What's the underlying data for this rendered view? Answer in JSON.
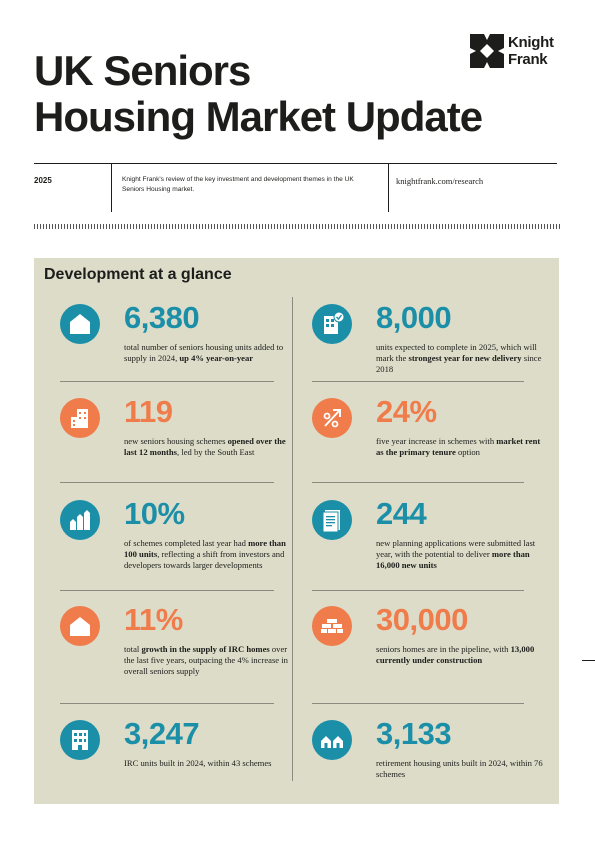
{
  "logo": {
    "line1": "Knight",
    "line2": "Frank"
  },
  "header": {
    "title_line1": "UK Seniors",
    "title_line2": "Housing Market Update",
    "year": "2025",
    "description": "Knight Frank's review of the key investment and development themes in the UK Seniors Housing market.",
    "url": "knightfrank.com/research"
  },
  "panel": {
    "title": "Development at a glance",
    "left": [
      {
        "icon": "house-icon",
        "color": "teal",
        "value": "6,380",
        "text_pre": "total number of seniors housing units added to supply in 2024, ",
        "text_bold": "up 4% year-on-year",
        "text_post": ""
      },
      {
        "icon": "buildings-icon",
        "color": "orange",
        "value": "119",
        "text_pre": "new seniors housing schemes ",
        "text_bold": "opened over the last 12 months",
        "text_post": ", led by the South East"
      },
      {
        "icon": "bar-houses-icon",
        "color": "teal",
        "value": "10%",
        "text_pre": "of schemes completed last year had ",
        "text_bold": "more than 100 units",
        "text_post": ", reflecting a shift from investors and developers towards larger developments"
      },
      {
        "icon": "home-outline-icon",
        "color": "orange",
        "value": "11%",
        "text_pre": "total ",
        "text_bold": "growth in the supply of IRC homes",
        "text_post": " over the last five years, outpacing the 4% increase in overall seniors supply"
      },
      {
        "icon": "apartment-block-icon",
        "color": "teal",
        "value": "3,247",
        "text_pre": "IRC units built in 2024, within 43 schemes",
        "text_bold": "",
        "text_post": ""
      }
    ],
    "right": [
      {
        "icon": "building-check-icon",
        "color": "teal",
        "value": "8,000",
        "text_pre": "units expected to complete in 2025, which will mark the ",
        "text_bold": "strongest year for new delivery",
        "text_post": " since 2018"
      },
      {
        "icon": "percent-arrow-icon",
        "color": "orange",
        "value": "24%",
        "text_pre": "five year increase in schemes with ",
        "text_bold": "market rent as the primary tenure",
        "text_post": " option"
      },
      {
        "icon": "document-icon",
        "color": "teal",
        "value": "244",
        "text_pre": "new planning applications were submitted last year, with the potential to deliver ",
        "text_bold": "more than 16,000 new units",
        "text_post": ""
      },
      {
        "icon": "bricks-icon",
        "color": "orange",
        "value": "30,000",
        "text_pre": "seniors homes are in the pipeline, with ",
        "text_bold": "13,000 currently under construction",
        "text_post": ""
      },
      {
        "icon": "two-houses-icon",
        "color": "teal",
        "value": "3,133",
        "text_pre": "retirement housing units built in 2024, within 76 schemes",
        "text_bold": "",
        "text_post": ""
      }
    ]
  },
  "colors": {
    "teal": "#1b8fa8",
    "orange": "#ef7c4a",
    "panel_bg": "#dcdcc9",
    "text": "#1d1d1b"
  }
}
